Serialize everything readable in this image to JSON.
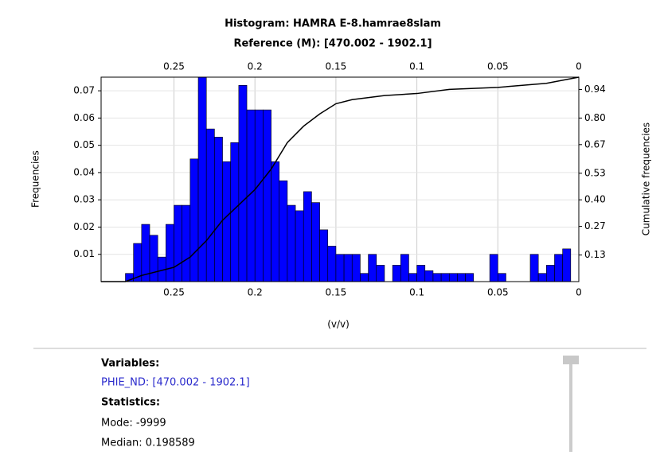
{
  "chart_data": {
    "type": "histogram",
    "title": "Histogram: HAMRA E-8.hamrae8slam",
    "subtitle": "Reference (M): [470.002 - 1902.1]",
    "x_label": "(v/v)",
    "y_label": "Frequencies",
    "y2_label": "Cumulative frequencies",
    "bins": [
      0.295,
      0.29,
      0.285,
      0.28,
      0.275,
      0.27,
      0.265,
      0.26,
      0.255,
      0.25,
      0.245,
      0.24,
      0.235,
      0.23,
      0.225,
      0.22,
      0.215,
      0.21,
      0.205,
      0.2,
      0.195,
      0.19,
      0.185,
      0.18,
      0.175,
      0.17,
      0.165,
      0.16,
      0.155,
      0.15,
      0.145,
      0.14,
      0.135,
      0.13,
      0.125,
      0.12,
      0.115,
      0.11,
      0.105,
      0.1,
      0.095,
      0.09,
      0.085,
      0.08,
      0.075,
      0.07,
      0.065,
      0.06,
      0.055,
      0.05,
      0.045,
      0.04,
      0.035,
      0.03,
      0.025,
      0.02,
      0.015,
      0.01,
      0.005,
      0
    ],
    "counts": [
      0,
      0,
      0,
      0.003,
      0.014,
      0.021,
      0.017,
      0.009,
      0.021,
      0.028,
      0.028,
      0.045,
      0.075,
      0.056,
      0.053,
      0.044,
      0.051,
      0.072,
      0.063,
      0.063,
      0.063,
      0.044,
      0.037,
      0.028,
      0.026,
      0.033,
      0.029,
      0.019,
      0.013,
      0.01,
      0.01,
      0.01,
      0.003,
      0.01,
      0.006,
      0,
      0.006,
      0.01,
      0.003,
      0.006,
      0.004,
      0.003,
      0.003,
      0.003,
      0.003,
      0.003,
      0,
      0,
      0.01,
      0.003,
      0,
      0,
      0,
      0.01,
      0.003,
      0.006,
      0.01,
      0.012,
      0
    ],
    "color": "#0000ff",
    "cumulative": {
      "color": "#000000",
      "axis": "y2",
      "x": [
        0.295,
        0.28,
        0.27,
        0.25,
        0.24,
        0.23,
        0.22,
        0.2,
        0.19,
        0.18,
        0.17,
        0.16,
        0.15,
        0.14,
        0.12,
        0.1,
        0.08,
        0.05,
        0.02,
        0
      ],
      "values": [
        0,
        0,
        0.03,
        0.07,
        0.12,
        0.2,
        0.3,
        0.45,
        0.55,
        0.68,
        0.76,
        0.82,
        0.87,
        0.89,
        0.91,
        0.92,
        0.94,
        0.95,
        0.97,
        1.0
      ]
    },
    "xlim": [
      0.295,
      0
    ],
    "ylim": [
      0,
      0.075
    ],
    "y2lim": [
      0,
      1
    ],
    "xticks": [
      0.25,
      0.2,
      0.15,
      0.1,
      0.05,
      0
    ],
    "yticks": [
      0.01,
      0.02,
      0.03,
      0.04,
      0.05,
      0.06,
      0.07
    ],
    "y2ticks": [
      0.13,
      0.27,
      {
        "value": 0.4,
        "label": "0.40"
      },
      0.53,
      0.67,
      {
        "value": 0.8,
        "label": "0.80"
      },
      0.94
    ],
    "grid": true
  },
  "panel": {
    "variables_heading": "Variables:",
    "variable": "PHIE_ND: [470.002 - 1902.1]",
    "statistics_heading": "Statistics:",
    "mode": "Mode: -9999",
    "median": "Median: 0.198589"
  }
}
